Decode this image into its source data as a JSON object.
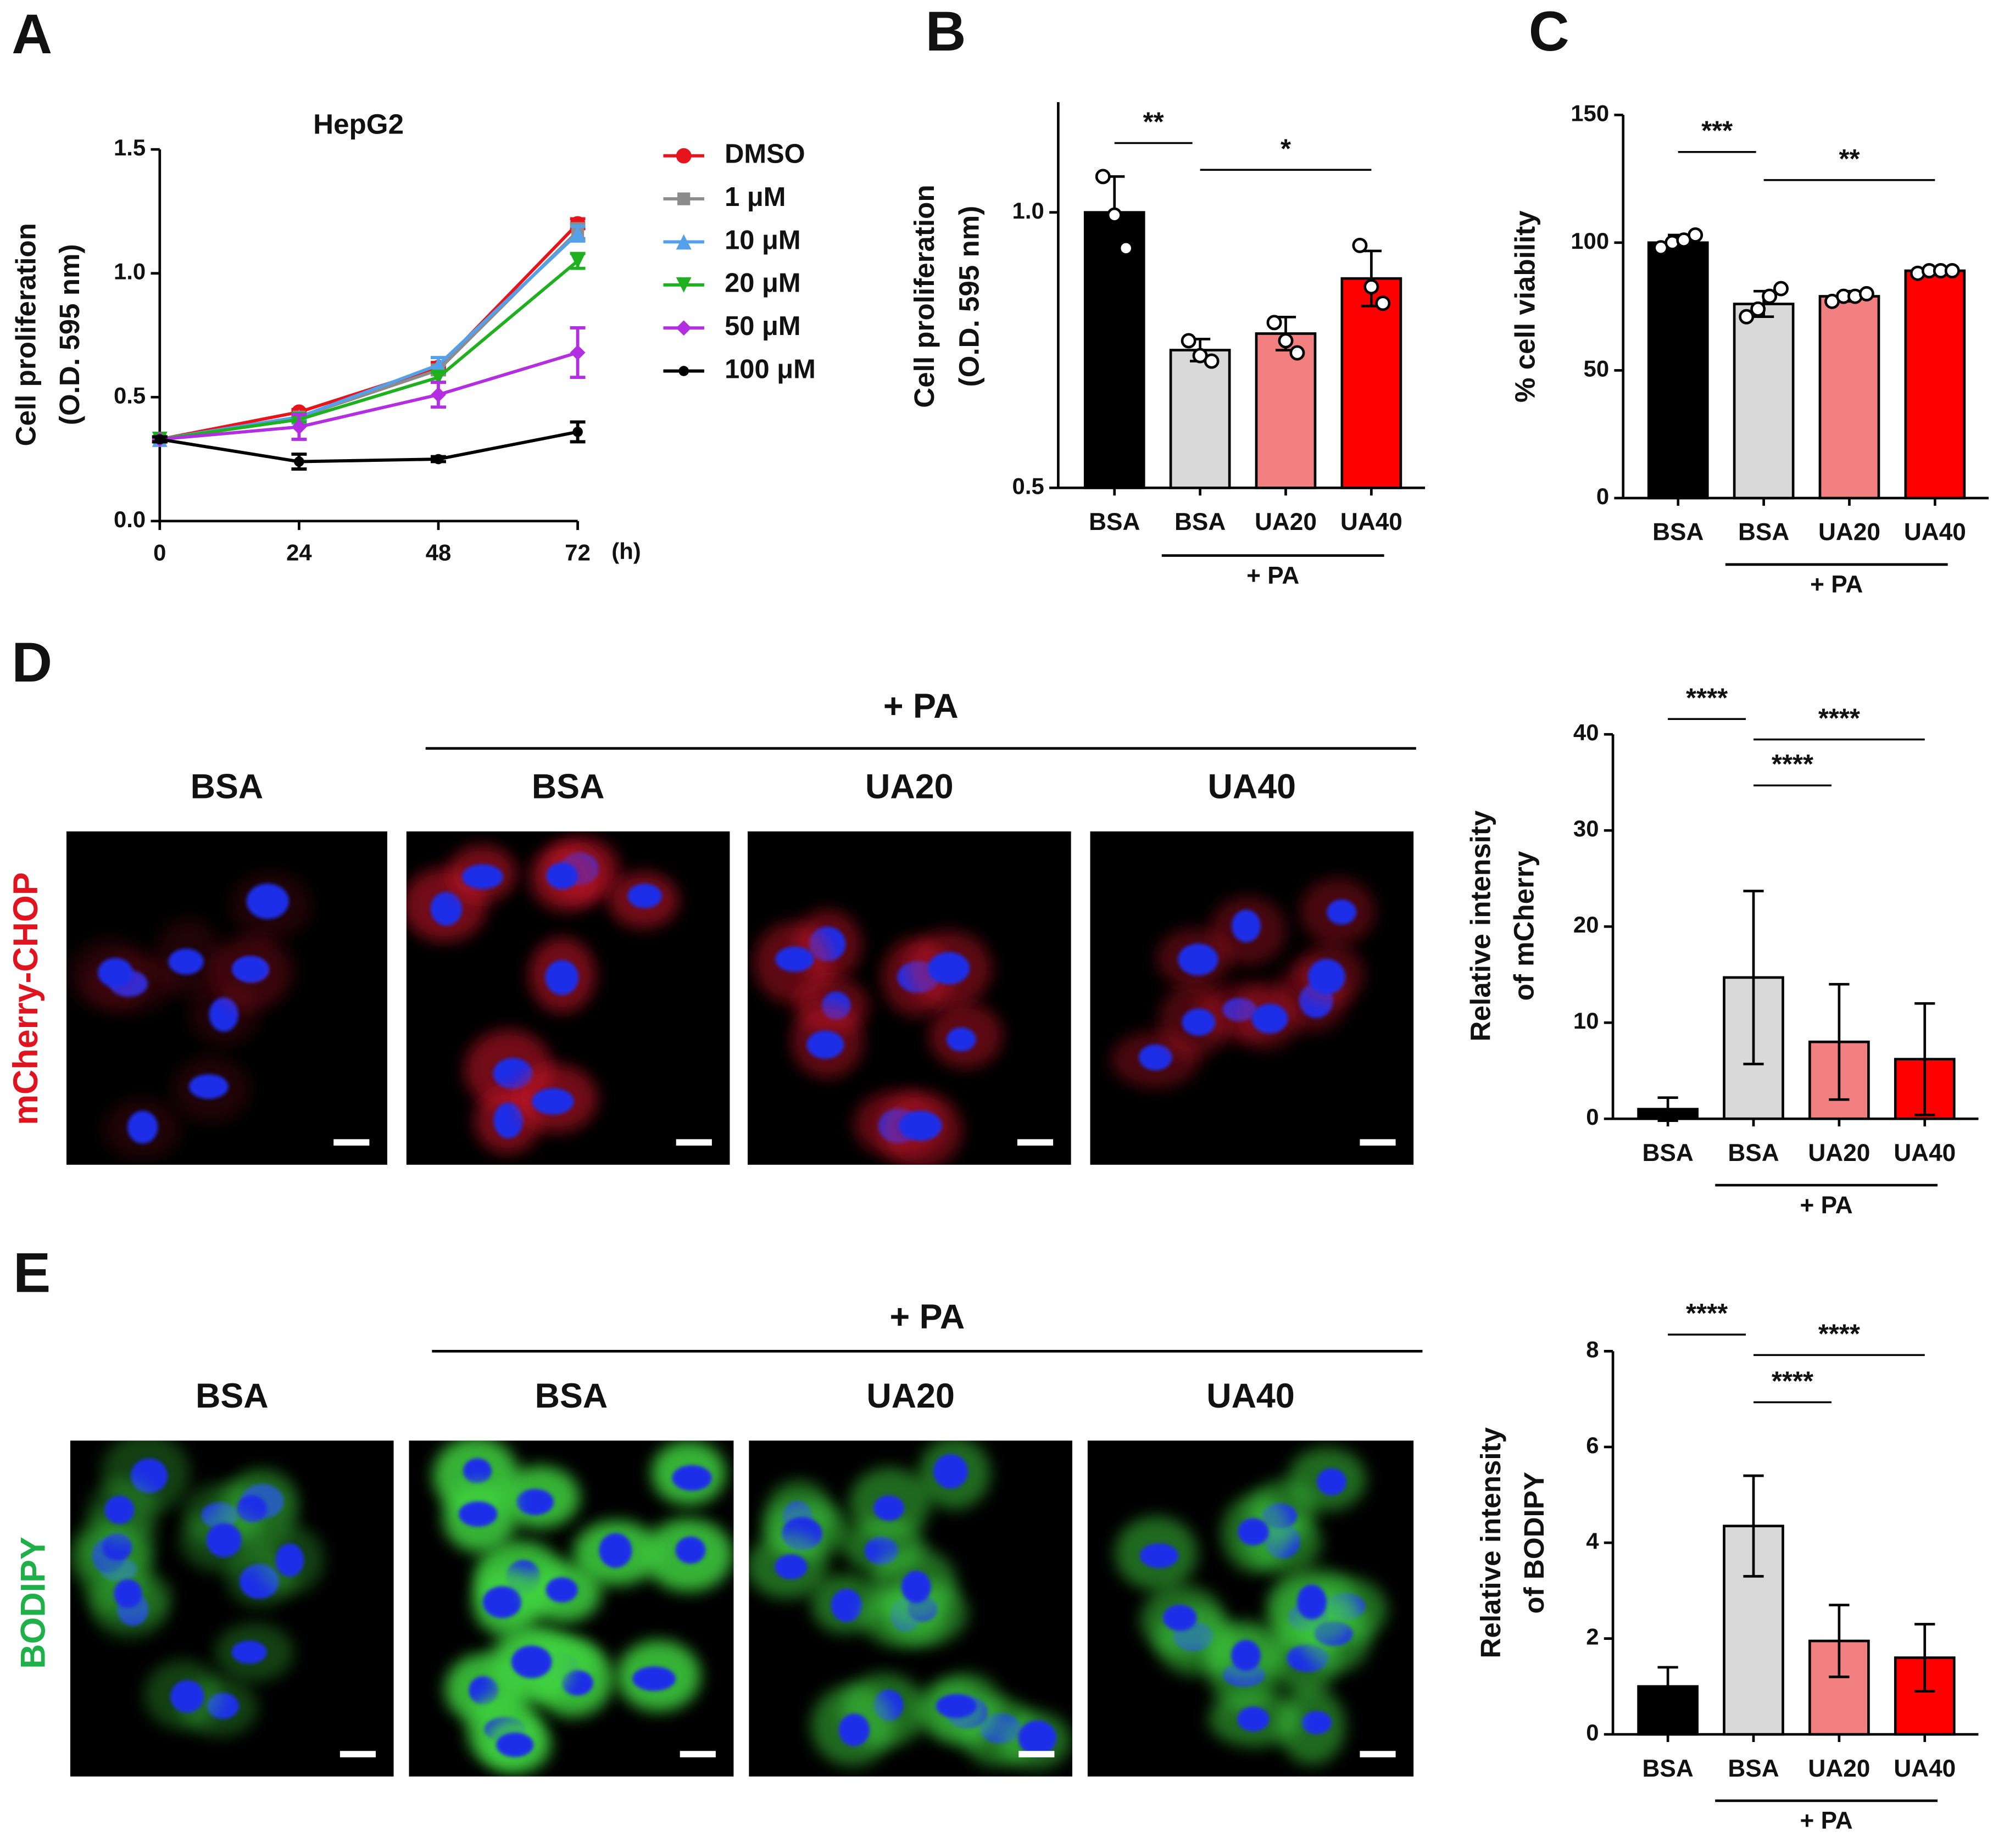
{
  "figure": {
    "panel_labels": [
      "A",
      "B",
      "C",
      "D",
      "E"
    ],
    "image_rows": [
      {
        "stain": "mCherry-CHOP",
        "group": "+ PA",
        "columns": [
          "BSA",
          "BSA",
          "UA20",
          "UA40"
        ]
      },
      {
        "stain": "BODIPY",
        "group": "+ PA",
        "columns": [
          "BSA",
          "BSA",
          "UA20",
          "UA40"
        ]
      }
    ]
  },
  "chart_data": [
    {
      "type": "line",
      "title": "HepG2",
      "ylabel": [
        "Cell proliferation",
        "(O.D. 595 nm)"
      ],
      "xlabel": "(h)",
      "x": [
        0,
        24,
        48,
        72
      ],
      "xlim": [
        0,
        72
      ],
      "xticks": [
        0,
        24,
        48,
        72
      ],
      "ylim": [
        0,
        1.5
      ],
      "yticks": [
        {
          "value": 0,
          "label": "0.0"
        },
        {
          "value": 0.5,
          "label": "0.5"
        },
        {
          "value": 1,
          "label": "1.0"
        },
        {
          "value": 1.5,
          "label": "1.5"
        }
      ],
      "series": [
        {
          "name": "DMSO",
          "color": "#e8141b",
          "marker": "circle",
          "values": [
            0.33,
            0.44,
            0.62,
            1.2
          ],
          "errors": [
            0.01,
            0.01,
            0.02,
            0.02
          ]
        },
        {
          "name": "1 μM",
          "color": "#8c8c8c",
          "marker": "square",
          "values": [
            0.33,
            0.42,
            0.61,
            1.17
          ],
          "errors": [
            0.01,
            0.01,
            0.02,
            0.03
          ]
        },
        {
          "name": "10 μM",
          "color": "#55a0ea",
          "marker": "triangle",
          "values": [
            0.33,
            0.42,
            0.63,
            1.16
          ],
          "errors": [
            0.01,
            0.01,
            0.03,
            0.03
          ]
        },
        {
          "name": "20 μM",
          "color": "#1fb01f",
          "marker": "triangle-down",
          "values": [
            0.33,
            0.41,
            0.58,
            1.05
          ],
          "errors": [
            0.01,
            0.01,
            0.02,
            0.03
          ]
        },
        {
          "name": "50 μM",
          "color": "#b22ee0",
          "marker": "diamond",
          "values": [
            0.33,
            0.38,
            0.51,
            0.68
          ],
          "errors": [
            0.01,
            0.05,
            0.05,
            0.1
          ]
        },
        {
          "name": "100 μM",
          "color": "#000000",
          "marker": "dot",
          "values": [
            0.33,
            0.24,
            0.25,
            0.36
          ],
          "errors": [
            0.01,
            0.03,
            0.01,
            0.04
          ]
        }
      ]
    },
    {
      "type": "bar",
      "ylabel": [
        "Cell proliferation",
        "(O.D. 595 nm)"
      ],
      "categories": [
        "BSA",
        "BSA",
        "UA20",
        "UA40"
      ],
      "colors": [
        "#000000",
        "#d9d9d9",
        "#f28080",
        "#ff0000"
      ],
      "values": [
        1.0,
        0.75,
        0.78,
        0.88
      ],
      "errors": [
        0.065,
        0.02,
        0.03,
        0.05
      ],
      "points": [
        [
          1.065,
          0.995,
          0.935
        ],
        [
          0.767,
          0.74,
          0.73
        ],
        [
          0.8,
          0.767,
          0.745
        ],
        [
          0.94,
          0.865,
          0.835
        ]
      ],
      "ylim": [
        0.5,
        1.2
      ],
      "yticks": [
        {
          "value": 0.5,
          "label": "0.5"
        },
        {
          "value": 1,
          "label": "1.0"
        }
      ],
      "significance": [
        {
          "from": 0,
          "to": 1,
          "label": "**"
        },
        {
          "from": 1,
          "to": 3,
          "label": "*"
        }
      ],
      "group": {
        "label": "+ PA",
        "from": 1,
        "to": 3
      }
    },
    {
      "type": "bar",
      "ylabel": "% cell viability",
      "categories": [
        "BSA",
        "BSA",
        "UA20",
        "UA40"
      ],
      "colors": [
        "#000000",
        "#d9d9d9",
        "#f28080",
        "#ff0000"
      ],
      "values": [
        100,
        76,
        79,
        89
      ],
      "errors": [
        3,
        5,
        2,
        1
      ],
      "points": [
        [
          98,
          100,
          101,
          103
        ],
        [
          71,
          74,
          79,
          82
        ],
        [
          77,
          79,
          79,
          80
        ],
        [
          88,
          89,
          89,
          89
        ]
      ],
      "ylim": [
        0,
        150
      ],
      "yticks": [
        0,
        50,
        100,
        150
      ],
      "significance": [
        {
          "from": 0,
          "to": 1,
          "label": "***"
        },
        {
          "from": 1,
          "to": 3,
          "label": "**"
        }
      ],
      "group": {
        "label": "+ PA",
        "from": 1,
        "to": 3
      }
    },
    {
      "type": "bar",
      "ylabel": [
        "Relative intensity",
        "of  mCherry"
      ],
      "categories": [
        "BSA",
        "BSA",
        "UA20",
        "UA40"
      ],
      "colors": [
        "#000000",
        "#d9d9d9",
        "#f28080",
        "#ff0000"
      ],
      "values": [
        1,
        14.7,
        8,
        6.2
      ],
      "errors": [
        1.2,
        9,
        6,
        5.8
      ],
      "ylim": [
        0,
        40
      ],
      "yticks": [
        0,
        10,
        20,
        30,
        40
      ],
      "significance": [
        {
          "from": 0,
          "to": 1,
          "label": "****"
        },
        {
          "from": 1,
          "to": 3,
          "label": "****"
        },
        {
          "from": 1,
          "to": 2,
          "label": "****"
        }
      ],
      "group": {
        "label": "+ PA",
        "from": 1,
        "to": 3
      }
    },
    {
      "type": "bar",
      "ylabel": [
        "Relative intensity",
        "of  BODIPY"
      ],
      "categories": [
        "BSA",
        "BSA",
        "UA20",
        "UA40"
      ],
      "colors": [
        "#000000",
        "#d9d9d9",
        "#f28080",
        "#ff0000"
      ],
      "values": [
        1.0,
        4.35,
        1.95,
        1.6
      ],
      "errors": [
        0.4,
        1.05,
        0.75,
        0.7
      ],
      "ylim": [
        0,
        8
      ],
      "yticks": [
        0,
        2,
        4,
        6,
        8
      ],
      "significance": [
        {
          "from": 0,
          "to": 1,
          "label": "****"
        },
        {
          "from": 1,
          "to": 3,
          "label": "****"
        },
        {
          "from": 1,
          "to": 2,
          "label": "****"
        }
      ],
      "group": {
        "label": "+ PA",
        "from": 1,
        "to": 3
      }
    }
  ]
}
